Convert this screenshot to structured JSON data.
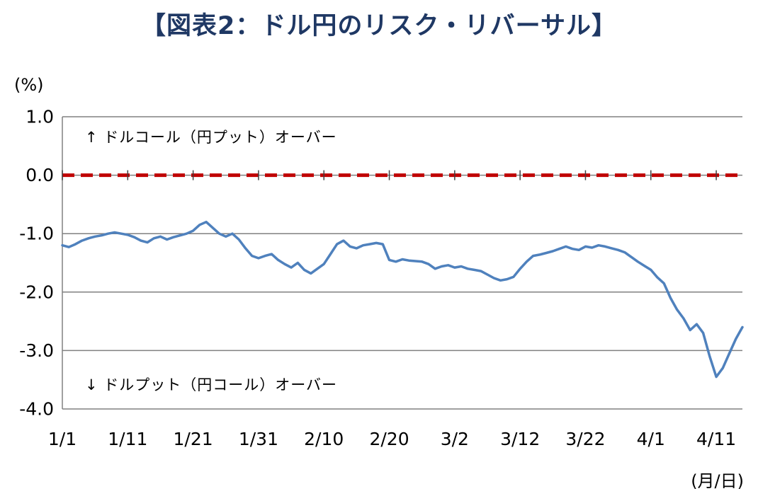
{
  "chart_data": {
    "type": "line",
    "title": "【図表2：ドル円のリスク・リバーサル】",
    "y_unit_label": "(%)",
    "x_unit_label": "(月/日)",
    "annotation_upper": "↑ ドルコール（円プット）オーバー",
    "annotation_lower": "↓ ドルプット（円コール）オーバー",
    "ylim": [
      -4.0,
      1.0
    ],
    "y_tick_values": [
      1.0,
      0.0,
      -1.0,
      -2.0,
      -3.0,
      -4.0
    ],
    "y_tick_labels": [
      "1.0",
      "0.0",
      "-1.0",
      "-2.0",
      "-3.0",
      "-4.0"
    ],
    "x_tick_labels": [
      "1/1",
      "1/11",
      "1/21",
      "1/31",
      "2/10",
      "2/20",
      "3/2",
      "3/12",
      "3/22",
      "4/1",
      "4/11"
    ],
    "x_tick_indices": [
      0,
      10,
      20,
      30,
      40,
      50,
      60,
      70,
      80,
      90,
      100
    ],
    "grid": true,
    "legend": "none",
    "colors": {
      "line": "#4F81BD",
      "zero_line": "#C00000",
      "grid": "#808080",
      "axis_tick": "#404040",
      "title": "#1F3864",
      "text": "#000000"
    },
    "zero_line": {
      "value": 0.0,
      "style": "dashed",
      "color": "#C00000"
    },
    "series": [
      {
        "name": "ドル円リスク・リバーサル",
        "color": "#4F81BD",
        "x_frequency": "daily",
        "dates": [
          "1/1",
          "1/2",
          "1/3",
          "1/4",
          "1/5",
          "1/6",
          "1/7",
          "1/8",
          "1/9",
          "1/10",
          "1/11",
          "1/12",
          "1/13",
          "1/14",
          "1/15",
          "1/16",
          "1/17",
          "1/18",
          "1/19",
          "1/20",
          "1/21",
          "1/22",
          "1/23",
          "1/24",
          "1/25",
          "1/26",
          "1/27",
          "1/28",
          "1/29",
          "1/30",
          "1/31",
          "2/1",
          "2/2",
          "2/3",
          "2/4",
          "2/5",
          "2/6",
          "2/7",
          "2/8",
          "2/9",
          "2/10",
          "2/11",
          "2/12",
          "2/13",
          "2/14",
          "2/15",
          "2/16",
          "2/17",
          "2/18",
          "2/19",
          "2/20",
          "2/21",
          "2/22",
          "2/23",
          "2/24",
          "2/25",
          "2/26",
          "2/27",
          "2/28",
          "3/1",
          "3/2",
          "3/3",
          "3/4",
          "3/5",
          "3/6",
          "3/7",
          "3/8",
          "3/9",
          "3/10",
          "3/11",
          "3/12",
          "3/13",
          "3/14",
          "3/15",
          "3/16",
          "3/17",
          "3/18",
          "3/19",
          "3/20",
          "3/21",
          "3/22",
          "3/23",
          "3/24",
          "3/25",
          "3/26",
          "3/27",
          "3/28",
          "3/29",
          "3/30",
          "3/31",
          "4/1",
          "4/2",
          "4/3",
          "4/4",
          "4/5",
          "4/6",
          "4/7",
          "4/8",
          "4/9",
          "4/10",
          "4/11",
          "4/12",
          "4/13",
          "4/14",
          "4/15"
        ],
        "values": [
          -1.2,
          -1.23,
          -1.18,
          -1.12,
          -1.08,
          -1.05,
          -1.03,
          -1.0,
          -0.98,
          -1.0,
          -1.02,
          -1.06,
          -1.12,
          -1.15,
          -1.08,
          -1.05,
          -1.1,
          -1.06,
          -1.03,
          -1.0,
          -0.95,
          -0.85,
          -0.8,
          -0.9,
          -1.0,
          -1.05,
          -1.0,
          -1.1,
          -1.25,
          -1.38,
          -1.42,
          -1.38,
          -1.35,
          -1.45,
          -1.52,
          -1.58,
          -1.5,
          -1.62,
          -1.68,
          -1.6,
          -1.52,
          -1.35,
          -1.18,
          -1.12,
          -1.22,
          -1.25,
          -1.2,
          -1.18,
          -1.16,
          -1.18,
          -1.45,
          -1.48,
          -1.44,
          -1.46,
          -1.47,
          -1.48,
          -1.52,
          -1.6,
          -1.56,
          -1.54,
          -1.58,
          -1.56,
          -1.6,
          -1.62,
          -1.64,
          -1.7,
          -1.76,
          -1.8,
          -1.78,
          -1.74,
          -1.6,
          -1.48,
          -1.38,
          -1.36,
          -1.33,
          -1.3,
          -1.26,
          -1.22,
          -1.26,
          -1.28,
          -1.22,
          -1.24,
          -1.2,
          -1.22,
          -1.25,
          -1.28,
          -1.32,
          -1.4,
          -1.48,
          -1.55,
          -1.62,
          -1.75,
          -1.85,
          -2.1,
          -2.3,
          -2.45,
          -2.65,
          -2.55,
          -2.7,
          -3.1,
          -3.45,
          -3.3,
          -3.05,
          -2.8,
          -2.6
        ]
      }
    ]
  }
}
